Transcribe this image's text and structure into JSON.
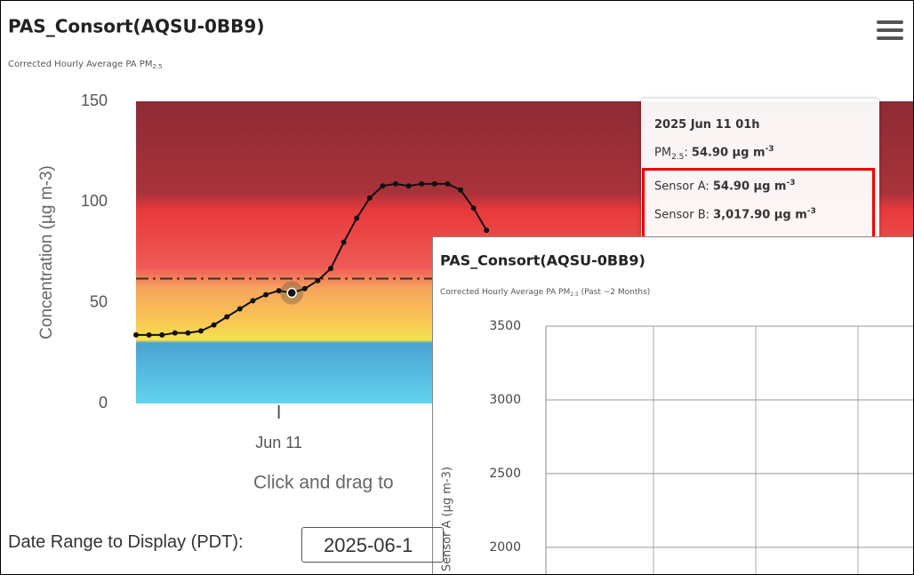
{
  "chart_data": [
    {
      "type": "line",
      "title": "PAS_Consort(AQSU-0BB9)",
      "subtitle": "Corrected Hourly Average PA PM",
      "subtitle_sub": "2.5",
      "y_label": "Concentration (µg m-3)",
      "caption": "Click and drag to",
      "x": [
        0,
        1,
        2,
        3,
        4,
        5,
        6,
        7,
        8,
        9,
        10,
        11,
        12,
        13,
        14,
        15,
        16,
        17,
        18,
        19,
        20,
        21,
        22,
        23,
        24,
        25,
        26,
        27
      ],
      "series": [
        {
          "name": null,
          "color": "#111111",
          "values": [
            34,
            34,
            34,
            35,
            35,
            36,
            39,
            43,
            47,
            51,
            54,
            56,
            54.9,
            57,
            61,
            67,
            80,
            92,
            102,
            108,
            109,
            108,
            109,
            109,
            109,
            106,
            97,
            86
          ]
        }
      ],
      "xlim": [
        0,
        60
      ],
      "xticks": [
        {
          "value": 11,
          "label": "Jun 11"
        }
      ],
      "ylim": [
        0,
        150
      ],
      "yticks": [
        0,
        50,
        100,
        150
      ],
      "reference_line": 62,
      "highlight_index": 12
    },
    {
      "type": "line",
      "title": "PAS_Consort(AQSU-0BB9)",
      "subtitle": "Corrected Hourly Average PA PM",
      "subtitle_sub": "2.5",
      "subtitle_tail": " (Past ~2 Months)",
      "y_label": "Sensor A (µg m-3)",
      "ylim": [
        1800,
        3500
      ],
      "yticks": [
        2000,
        2500,
        3000,
        3500
      ],
      "grid": true
    }
  ],
  "tooltip": {
    "title": "2025 Jun 11 01h",
    "pm": {
      "label": "PM",
      "label_sub": "2.5",
      "sep": ": ",
      "value": "54.90 µg m",
      "exp": "-3"
    },
    "sensor_a": {
      "label": "Sensor A: ",
      "value": "54.90 µg m",
      "exp": "-3"
    },
    "sensor_b": {
      "label": "Sensor B: ",
      "value": "3,017.90 µg m",
      "exp": "-3"
    }
  },
  "date_range": {
    "label": "Date Range to Display (PDT):",
    "value": "2025-06-1"
  }
}
